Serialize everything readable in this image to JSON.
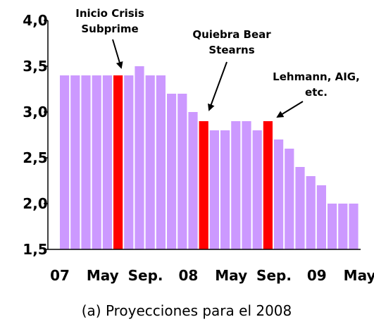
{
  "chart_data": {
    "type": "bar",
    "caption": "(a) Proyecciones para el 2008",
    "categories": [
      "07",
      null,
      null,
      null,
      "May",
      null,
      null,
      null,
      "Sep.",
      null,
      null,
      null,
      "08",
      null,
      null,
      null,
      "May",
      null,
      null,
      null,
      "Sep.",
      null,
      null,
      null,
      "09",
      null,
      null,
      null,
      "May"
    ],
    "values": [
      3.4,
      3.4,
      3.4,
      3.4,
      3.4,
      3.4,
      3.4,
      3.5,
      3.4,
      3.4,
      3.2,
      3.2,
      3.0,
      2.9,
      2.8,
      2.8,
      2.9,
      2.9,
      2.8,
      2.9,
      2.7,
      2.6,
      2.4,
      2.3,
      2.2,
      2.0,
      2.0,
      2.0,
      null
    ],
    "colors": [
      "#cc99ff",
      "#cc99ff",
      "#cc99ff",
      "#cc99ff",
      "#cc99ff",
      "#ff0000",
      "#cc99ff",
      "#cc99ff",
      "#cc99ff",
      "#cc99ff",
      "#cc99ff",
      "#cc99ff",
      "#cc99ff",
      "#ff0000",
      "#cc99ff",
      "#cc99ff",
      "#cc99ff",
      "#cc99ff",
      "#cc99ff",
      "#ff0000",
      "#cc99ff",
      "#cc99ff",
      "#cc99ff",
      "#cc99ff",
      "#cc99ff",
      "#cc99ff",
      "#cc99ff",
      "#cc99ff",
      "#cc99ff"
    ],
    "ylim": [
      1.5,
      4.0
    ],
    "yticks": [
      {
        "value": 1.5,
        "label": "1,5"
      },
      {
        "value": 2.0,
        "label": "2,0"
      },
      {
        "value": 2.5,
        "label": "2,5"
      },
      {
        "value": 3.0,
        "label": "3,0"
      },
      {
        "value": 3.5,
        "label": "3,5"
      },
      {
        "value": 4.0,
        "label": "4,0"
      }
    ],
    "grid": false,
    "annotations": [
      {
        "lines": [
          "Inicio Crisis",
          "Subprime"
        ]
      },
      {
        "lines": [
          "Quiebra Bear",
          "Stearns"
        ]
      },
      {
        "lines": [
          "Lehmann, AIG,",
          "etc."
        ]
      }
    ]
  }
}
